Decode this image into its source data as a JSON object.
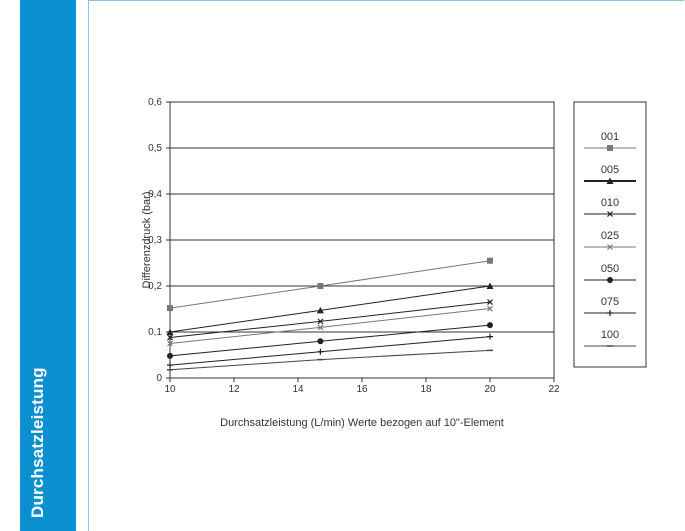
{
  "sidebar": {
    "title": "Durchsatzleistung"
  },
  "colors": {
    "accent": "#0a8fd0",
    "frame": "#8fc3e4",
    "line_dark": "#222222",
    "line_gray": "#777777"
  },
  "chart_data": {
    "type": "line",
    "title": "",
    "xlabel": "Durchsatzleistung (L/min) Werte bezogen auf 10\"-Element",
    "ylabel": "Differenzdruck (bar)",
    "xlim": [
      10,
      22
    ],
    "ylim": [
      0,
      0.6
    ],
    "x_ticks": [
      "10",
      "12",
      "14",
      "16",
      "18",
      "20",
      "22"
    ],
    "y_ticks": [
      "0",
      "0,1",
      "0,2",
      "0,3",
      "0,4",
      "0,5",
      "0,6"
    ],
    "grid": "horizontal",
    "legend_position": "right",
    "x": [
      10,
      14.7,
      20
    ],
    "series": [
      {
        "name": "001",
        "values": [
          0.152,
          0.2,
          0.255
        ],
        "marker": "square",
        "color": "#777777"
      },
      {
        "name": "005",
        "values": [
          0.1,
          0.147,
          0.2
        ],
        "marker": "triangle",
        "color": "#222222"
      },
      {
        "name": "010",
        "values": [
          0.088,
          0.123,
          0.165
        ],
        "marker": "x",
        "color": "#222222"
      },
      {
        "name": "025",
        "values": [
          0.075,
          0.11,
          0.151
        ],
        "marker": "x",
        "color": "#777777"
      },
      {
        "name": "050",
        "values": [
          0.048,
          0.08,
          0.115
        ],
        "marker": "circle",
        "color": "#222222"
      },
      {
        "name": "075",
        "values": [
          0.028,
          0.057,
          0.09
        ],
        "marker": "plus",
        "color": "#222222"
      },
      {
        "name": "100",
        "values": [
          0.018,
          0.04,
          0.06
        ],
        "marker": "dash",
        "color": "#444444"
      }
    ]
  }
}
